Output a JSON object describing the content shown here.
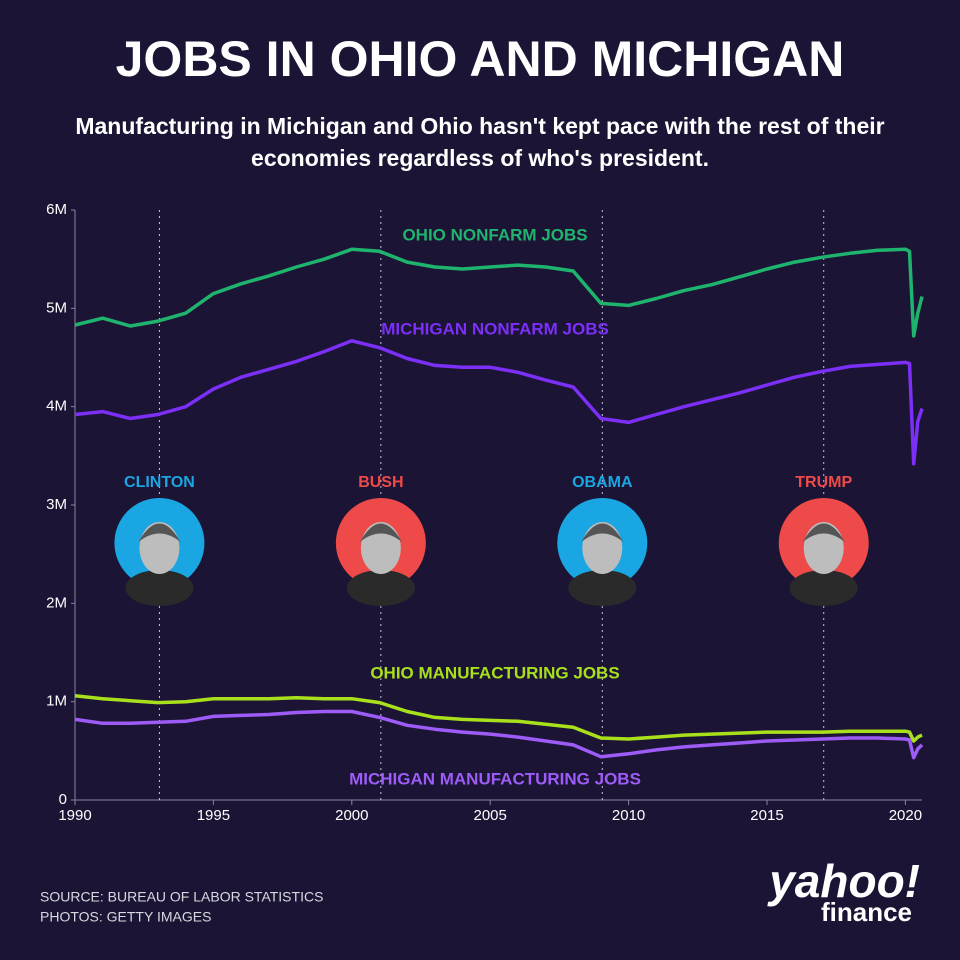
{
  "chart_data": {
    "type": "line",
    "title": "JOBS IN OHIO AND MICHIGAN",
    "subtitle": "Manufacturing in Michigan and Ohio hasn't kept pace with the rest of their economies regardless of who's president.",
    "x": [
      1990,
      1991,
      1992,
      1993,
      1994,
      1995,
      1996,
      1997,
      1998,
      1999,
      2000,
      2001,
      2002,
      2003,
      2004,
      2005,
      2006,
      2007,
      2008,
      2009,
      2010,
      2011,
      2012,
      2013,
      2014,
      2015,
      2016,
      2017,
      2018,
      2019,
      2020,
      2020.15,
      2020.3,
      2020.45,
      2020.6
    ],
    "series": [
      {
        "name": "OHIO NONFARM JOBS",
        "color": "#1fb46e",
        "values": [
          4.83,
          4.9,
          4.82,
          4.87,
          4.95,
          5.15,
          5.25,
          5.33,
          5.42,
          5.5,
          5.6,
          5.58,
          5.47,
          5.42,
          5.4,
          5.42,
          5.44,
          5.42,
          5.38,
          5.05,
          5.03,
          5.1,
          5.18,
          5.24,
          5.32,
          5.4,
          5.47,
          5.52,
          5.56,
          5.59,
          5.6,
          5.58,
          4.72,
          4.95,
          5.12
        ]
      },
      {
        "name": "MICHIGAN NONFARM JOBS",
        "color": "#7b2ff7",
        "values": [
          3.92,
          3.95,
          3.88,
          3.92,
          4.0,
          4.18,
          4.3,
          4.38,
          4.46,
          4.56,
          4.67,
          4.6,
          4.49,
          4.42,
          4.4,
          4.4,
          4.35,
          4.27,
          4.2,
          3.88,
          3.84,
          3.92,
          4.0,
          4.07,
          4.14,
          4.22,
          4.3,
          4.36,
          4.41,
          4.43,
          4.45,
          4.44,
          3.42,
          3.85,
          3.98
        ]
      },
      {
        "name": "OHIO MANUFACTURING JOBS",
        "color": "#a8e01c",
        "values": [
          1.06,
          1.03,
          1.01,
          0.99,
          1.0,
          1.03,
          1.03,
          1.03,
          1.04,
          1.03,
          1.03,
          0.99,
          0.9,
          0.84,
          0.82,
          0.81,
          0.8,
          0.77,
          0.74,
          0.63,
          0.62,
          0.64,
          0.66,
          0.67,
          0.68,
          0.69,
          0.69,
          0.69,
          0.7,
          0.7,
          0.7,
          0.69,
          0.6,
          0.64,
          0.66
        ]
      },
      {
        "name": "MICHIGAN MANUFACTURING JOBS",
        "color": "#9d5cf7",
        "values": [
          0.82,
          0.78,
          0.78,
          0.79,
          0.8,
          0.85,
          0.86,
          0.87,
          0.89,
          0.9,
          0.9,
          0.84,
          0.76,
          0.72,
          0.69,
          0.67,
          0.64,
          0.6,
          0.56,
          0.44,
          0.47,
          0.51,
          0.54,
          0.56,
          0.58,
          0.6,
          0.61,
          0.62,
          0.63,
          0.63,
          0.62,
          0.61,
          0.43,
          0.52,
          0.56
        ]
      }
    ],
    "xlim": [
      1990,
      2020.6
    ],
    "xticks": [
      1990,
      1995,
      2000,
      2005,
      2010,
      2015,
      2020
    ],
    "ylim": [
      0,
      6
    ],
    "yticks": [
      0,
      {
        "value": 1,
        "label": "1M"
      },
      {
        "value": 2,
        "label": "2M"
      },
      {
        "value": 3,
        "label": "3M"
      },
      {
        "value": 4,
        "label": "4M"
      },
      {
        "value": 5,
        "label": "5M"
      },
      {
        "value": 6,
        "label": "6M"
      }
    ],
    "presidents": [
      {
        "name": "CLINTON",
        "x": 1993.05,
        "color": "#1aa6e2"
      },
      {
        "name": "BUSH",
        "x": 2001.05,
        "color": "#ef4a4a"
      },
      {
        "name": "OBAMA",
        "x": 2009.05,
        "color": "#1aa6e2"
      },
      {
        "name": "TRUMP",
        "x": 2017.05,
        "color": "#ef4a4a"
      }
    ],
    "source": "SOURCE:  BUREAU OF LABOR STATISTICS",
    "photos": "PHOTOS: GETTY IMAGES",
    "logo": {
      "top": "yahoo!",
      "bottom": "finance"
    }
  }
}
